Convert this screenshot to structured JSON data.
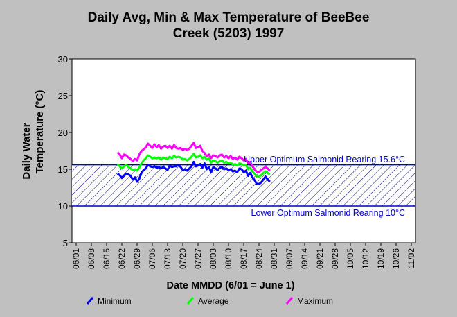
{
  "chart_data": {
    "type": "line",
    "title_line1": "Daily Avg, Min & Max Temperature of BeeBee",
    "title_line2": "Creek (5203) 1997",
    "ylabel_line1": "Daily Water",
    "ylabel_line2": "Temperature (°C)",
    "xlabel": "Date MMDD (6/01 = June 1)",
    "ylim": [
      5,
      30
    ],
    "yticks": [
      "5",
      "10",
      "15",
      "20",
      "25",
      "30"
    ],
    "xticks": [
      "06/01",
      "06/08",
      "06/15",
      "06/22",
      "06/29",
      "07/06",
      "07/13",
      "07/20",
      "07/27",
      "08/03",
      "08/10",
      "08/17",
      "08/24",
      "08/31",
      "09/07",
      "09/14",
      "09/21",
      "09/28",
      "10/05",
      "10/12",
      "10/19",
      "10/26",
      "11/02"
    ],
    "grid": false,
    "legend_position": "bottom",
    "colors": {
      "background": "#c0c0c0",
      "plot_area": "#ffffff",
      "band_line": "#0000cc",
      "band_hatch": "#000080",
      "minimum": "#0000ff",
      "average": "#00ff00",
      "maximum": "#ff00ff"
    },
    "reference_band": {
      "lower": 10,
      "upper": 15.6,
      "upper_label": "Upper Optimum Salmonid Rearing 15.6°C",
      "lower_label": "Lower Optimum Salmonid Rearing 10°C"
    },
    "x_start_day_index": 19,
    "series": [
      {
        "name": "Minimum",
        "values": [
          14.4,
          14.2,
          13.8,
          14.1,
          14.4,
          14.3,
          14.1,
          13.6,
          13.9,
          13.3,
          13.7,
          14.5,
          14.9,
          15.1,
          15.6,
          15.4,
          15.3,
          15.4,
          15.2,
          15.3,
          15.1,
          15.3,
          15.1,
          14.9,
          15.5,
          15.3,
          15.4,
          15.4,
          15.6,
          15.3,
          14.9,
          15.0,
          14.8,
          15.1,
          15.4,
          16.0,
          15.4,
          15.5,
          15.7,
          15.2,
          15.8,
          15.0,
          15.3,
          14.6,
          15.3,
          15.1,
          14.9,
          15.2,
          15.3,
          15.0,
          15.1,
          14.9,
          15.0,
          14.7,
          14.8,
          14.6,
          15.1,
          15.0,
          14.6,
          14.8,
          14.1,
          14.5,
          13.9,
          13.5,
          13.0,
          13.0,
          13.2,
          13.6,
          14.0,
          13.6,
          13.3
        ]
      },
      {
        "name": "Average",
        "values": [
          15.7,
          15.4,
          15.1,
          15.4,
          15.6,
          15.3,
          15.1,
          14.9,
          15.0,
          14.8,
          15.2,
          15.8,
          16.2,
          16.5,
          16.9,
          16.7,
          16.5,
          16.6,
          16.5,
          16.6,
          16.3,
          16.6,
          16.5,
          16.4,
          16.7,
          16.5,
          16.8,
          16.6,
          16.7,
          16.6,
          16.3,
          16.4,
          16.2,
          16.4,
          16.7,
          17.1,
          16.6,
          16.7,
          16.9,
          16.5,
          16.7,
          16.3,
          16.5,
          15.9,
          16.2,
          16.1,
          15.9,
          16.1,
          16.2,
          15.9,
          16.0,
          15.8,
          15.9,
          15.6,
          15.7,
          15.5,
          15.8,
          15.7,
          15.5,
          15.6,
          15.0,
          15.2,
          14.7,
          14.4,
          14.0,
          14.0,
          14.2,
          14.5,
          14.7,
          14.5,
          14.3
        ]
      },
      {
        "name": "Maximum",
        "values": [
          17.3,
          17.0,
          16.5,
          17.0,
          16.9,
          16.6,
          16.4,
          16.1,
          16.4,
          16.2,
          17.0,
          17.5,
          17.7,
          18.0,
          18.5,
          18.2,
          17.9,
          18.4,
          18.0,
          18.3,
          17.8,
          18.1,
          18.2,
          17.9,
          18.2,
          17.8,
          18.3,
          17.9,
          17.8,
          17.9,
          17.6,
          17.8,
          17.6,
          17.8,
          18.2,
          18.6,
          17.9,
          18.0,
          18.2,
          17.5,
          17.2,
          16.8,
          17.0,
          16.5,
          16.9,
          16.8,
          16.6,
          16.9,
          17.0,
          16.6,
          16.8,
          16.5,
          16.8,
          16.4,
          16.6,
          16.3,
          16.7,
          16.5,
          16.2,
          16.4,
          15.8,
          16.0,
          15.4,
          15.0,
          14.6,
          14.6,
          14.9,
          15.1,
          15.3,
          15.1,
          14.8
        ]
      }
    ]
  }
}
